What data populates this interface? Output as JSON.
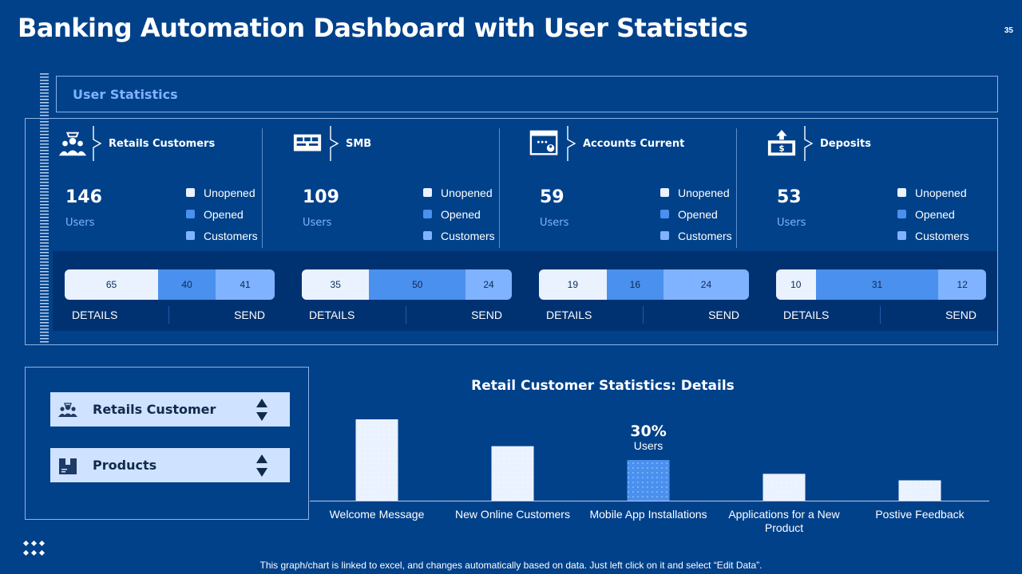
{
  "page": {
    "title": "Banking Automation Dashboard with User Statistics",
    "page_number": "35"
  },
  "user_stats": {
    "header": "User Statistics",
    "legend": [
      "Unopened",
      "Opened",
      "Customers"
    ],
    "legend_colors": [
      "#eaf2ff",
      "#4a90ee",
      "#7fb3ff"
    ],
    "cards": [
      {
        "title": "Retails Customers",
        "count": "146",
        "unit": "Users",
        "icon": "customers-group-icon",
        "bar": [
          {
            "value": 65,
            "label": "65"
          },
          {
            "value": 40,
            "label": "40"
          },
          {
            "value": 41,
            "label": "41"
          }
        ],
        "details_label": "DETAILS",
        "send_label": "SEND"
      },
      {
        "title": "SMB",
        "count": "109",
        "unit": "Users",
        "icon": "smb-store-icon",
        "bar": [
          {
            "value": 35,
            "label": "35"
          },
          {
            "value": 50,
            "label": "50"
          },
          {
            "value": 24,
            "label": "24"
          }
        ],
        "details_label": "DETAILS",
        "send_label": "SEND"
      },
      {
        "title": "Accounts Current",
        "count": "59",
        "unit": "Users",
        "icon": "account-browser-icon",
        "bar": [
          {
            "value": 19,
            "label": "19"
          },
          {
            "value": 16,
            "label": "16"
          },
          {
            "value": 24,
            "label": "24"
          }
        ],
        "details_label": "DETAILS",
        "send_label": "SEND"
      },
      {
        "title": "Deposits",
        "count": "53",
        "unit": "Users",
        "icon": "deposit-money-icon",
        "bar": [
          {
            "value": 10,
            "label": "10"
          },
          {
            "value": 31,
            "label": "31"
          },
          {
            "value": 12,
            "label": "12"
          }
        ],
        "details_label": "DETAILS",
        "send_label": "SEND"
      }
    ]
  },
  "filters": {
    "customer_select": {
      "label": "Retails Customer",
      "icon": "customers-group-icon"
    },
    "product_select": {
      "label": "Products",
      "icon": "product-box-icon"
    }
  },
  "chart_data": {
    "type": "bar",
    "title": "Retail Customer Statistics:  Details",
    "categories": [
      "Welcome Message",
      "New Online Customers",
      "Mobile App Installations",
      "Applications for a New Product",
      "Postive Feedback"
    ],
    "category_lines": [
      [
        "Welcome Message"
      ],
      [
        "New Online Customers"
      ],
      [
        "Mobile App Installations"
      ],
      [
        "Applications for a New",
        "Product"
      ],
      [
        "Postive Feedback"
      ]
    ],
    "values": [
      100,
      67,
      50,
      33,
      25
    ],
    "highlight_index": 2,
    "annotation": {
      "value": "30%",
      "label": "Users"
    },
    "ylim": [
      0,
      100
    ],
    "colors": {
      "bar": "#eaf2ff",
      "highlight": "#4a90ee"
    }
  },
  "footnote": "This graph/chart is linked to excel, and changes automatically based on data. Just left click on it and select “Edit Data”."
}
